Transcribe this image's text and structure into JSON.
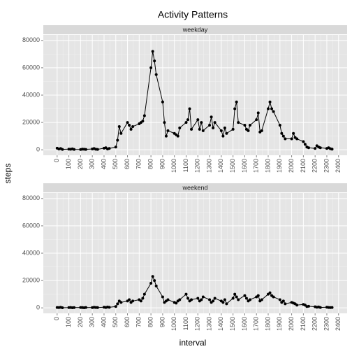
{
  "title": "Activity Patterns",
  "x_label": "interval",
  "y_label": "steps",
  "chart_data": [
    {
      "type": "line",
      "title": "weekday",
      "x": [
        0,
        15,
        30,
        45,
        100,
        115,
        130,
        145,
        200,
        215,
        230,
        245,
        300,
        315,
        330,
        345,
        400,
        415,
        430,
        445,
        500,
        515,
        530,
        545,
        600,
        615,
        630,
        645,
        700,
        715,
        730,
        745,
        800,
        815,
        830,
        845,
        900,
        915,
        930,
        945,
        1000,
        1015,
        1030,
        1045,
        1100,
        1115,
        1130,
        1145,
        1200,
        1215,
        1230,
        1245,
        1300,
        1315,
        1330,
        1345,
        1400,
        1415,
        1430,
        1445,
        1500,
        1515,
        1530,
        1545,
        1600,
        1615,
        1630,
        1645,
        1700,
        1715,
        1730,
        1745,
        1800,
        1815,
        1830,
        1845,
        1900,
        1915,
        1930,
        1945,
        2000,
        2015,
        2030,
        2045,
        2100,
        2115,
        2130,
        2145,
        2200,
        2215,
        2230,
        2245,
        2300,
        2315,
        2330,
        2345
      ],
      "values": [
        1200,
        600,
        900,
        300,
        500,
        400,
        700,
        300,
        200,
        500,
        400,
        300,
        600,
        900,
        400,
        300,
        1200,
        1500,
        600,
        1000,
        2000,
        7000,
        17000,
        12000,
        20000,
        18000,
        15000,
        17000,
        19000,
        20000,
        21000,
        25000,
        60000,
        72000,
        65000,
        55000,
        35000,
        20000,
        10000,
        14000,
        12000,
        11000,
        10000,
        16000,
        20000,
        22000,
        30000,
        15000,
        22000,
        15000,
        20000,
        14000,
        18000,
        24000,
        16000,
        20000,
        14000,
        10000,
        16000,
        12000,
        15000,
        30000,
        35000,
        20000,
        18000,
        15000,
        14000,
        18000,
        22000,
        27000,
        13000,
        14000,
        30000,
        35000,
        30000,
        28000,
        18000,
        12000,
        10000,
        8000,
        8000,
        12000,
        9000,
        8000,
        6000,
        4000,
        2000,
        1500,
        1000,
        3000,
        2000,
        1500,
        1000,
        1500,
        800,
        500
      ],
      "color": "#000000",
      "xlim": [
        -118,
        2473
      ],
      "ylim": [
        -4000,
        84000
      ],
      "xticks": [
        0,
        100,
        200,
        300,
        400,
        500,
        600,
        700,
        800,
        900,
        1000,
        1100,
        1200,
        1300,
        1400,
        1500,
        1600,
        1700,
        1800,
        1900,
        2000,
        2100,
        2200,
        2300,
        2400
      ],
      "yticks": [
        0,
        20000,
        40000,
        60000,
        80000
      ],
      "grid": true
    },
    {
      "type": "line",
      "title": "weekend",
      "x": [
        0,
        15,
        30,
        45,
        100,
        115,
        130,
        145,
        200,
        215,
        230,
        245,
        300,
        315,
        330,
        345,
        400,
        415,
        430,
        445,
        500,
        515,
        530,
        545,
        600,
        615,
        630,
        645,
        700,
        715,
        730,
        745,
        800,
        815,
        830,
        845,
        900,
        915,
        930,
        945,
        1000,
        1015,
        1030,
        1045,
        1100,
        1115,
        1130,
        1145,
        1200,
        1215,
        1230,
        1245,
        1300,
        1315,
        1330,
        1345,
        1400,
        1415,
        1430,
        1445,
        1500,
        1515,
        1530,
        1545,
        1600,
        1615,
        1630,
        1645,
        1700,
        1715,
        1730,
        1745,
        1800,
        1815,
        1830,
        1845,
        1900,
        1915,
        1930,
        1945,
        2000,
        2015,
        2030,
        2045,
        2100,
        2115,
        2130,
        2145,
        2200,
        2215,
        2230,
        2245,
        2300,
        2315,
        2330,
        2345
      ],
      "values": [
        300,
        200,
        400,
        100,
        200,
        300,
        100,
        200,
        300,
        200,
        100,
        300,
        200,
        400,
        300,
        200,
        500,
        300,
        600,
        400,
        1000,
        3000,
        5000,
        4000,
        5000,
        6000,
        4000,
        5000,
        6000,
        5000,
        7000,
        10000,
        18000,
        23000,
        20000,
        16000,
        8000,
        4000,
        5000,
        6000,
        4000,
        3500,
        5000,
        6000,
        10000,
        7000,
        5000,
        6000,
        7000,
        5000,
        6000,
        8000,
        6000,
        4000,
        5000,
        7000,
        5000,
        4000,
        6000,
        3000,
        7000,
        10000,
        8000,
        6000,
        9000,
        7000,
        5000,
        6000,
        8000,
        9000,
        5000,
        6000,
        10000,
        11000,
        9000,
        8000,
        6000,
        4000,
        5000,
        3000,
        4000,
        3500,
        3000,
        2000,
        2500,
        2000,
        1000,
        1200,
        800,
        500,
        700,
        300,
        500,
        300,
        200,
        300
      ],
      "color": "#000000",
      "xlim": [
        -118,
        2473
      ],
      "ylim": [
        -4000,
        84000
      ],
      "xticks": [
        0,
        100,
        200,
        300,
        400,
        500,
        600,
        700,
        800,
        900,
        1000,
        1100,
        1200,
        1300,
        1400,
        1500,
        1600,
        1700,
        1800,
        1900,
        2000,
        2100,
        2200,
        2300,
        2400
      ],
      "yticks": [
        0,
        20000,
        40000,
        60000,
        80000
      ],
      "grid": true
    }
  ]
}
